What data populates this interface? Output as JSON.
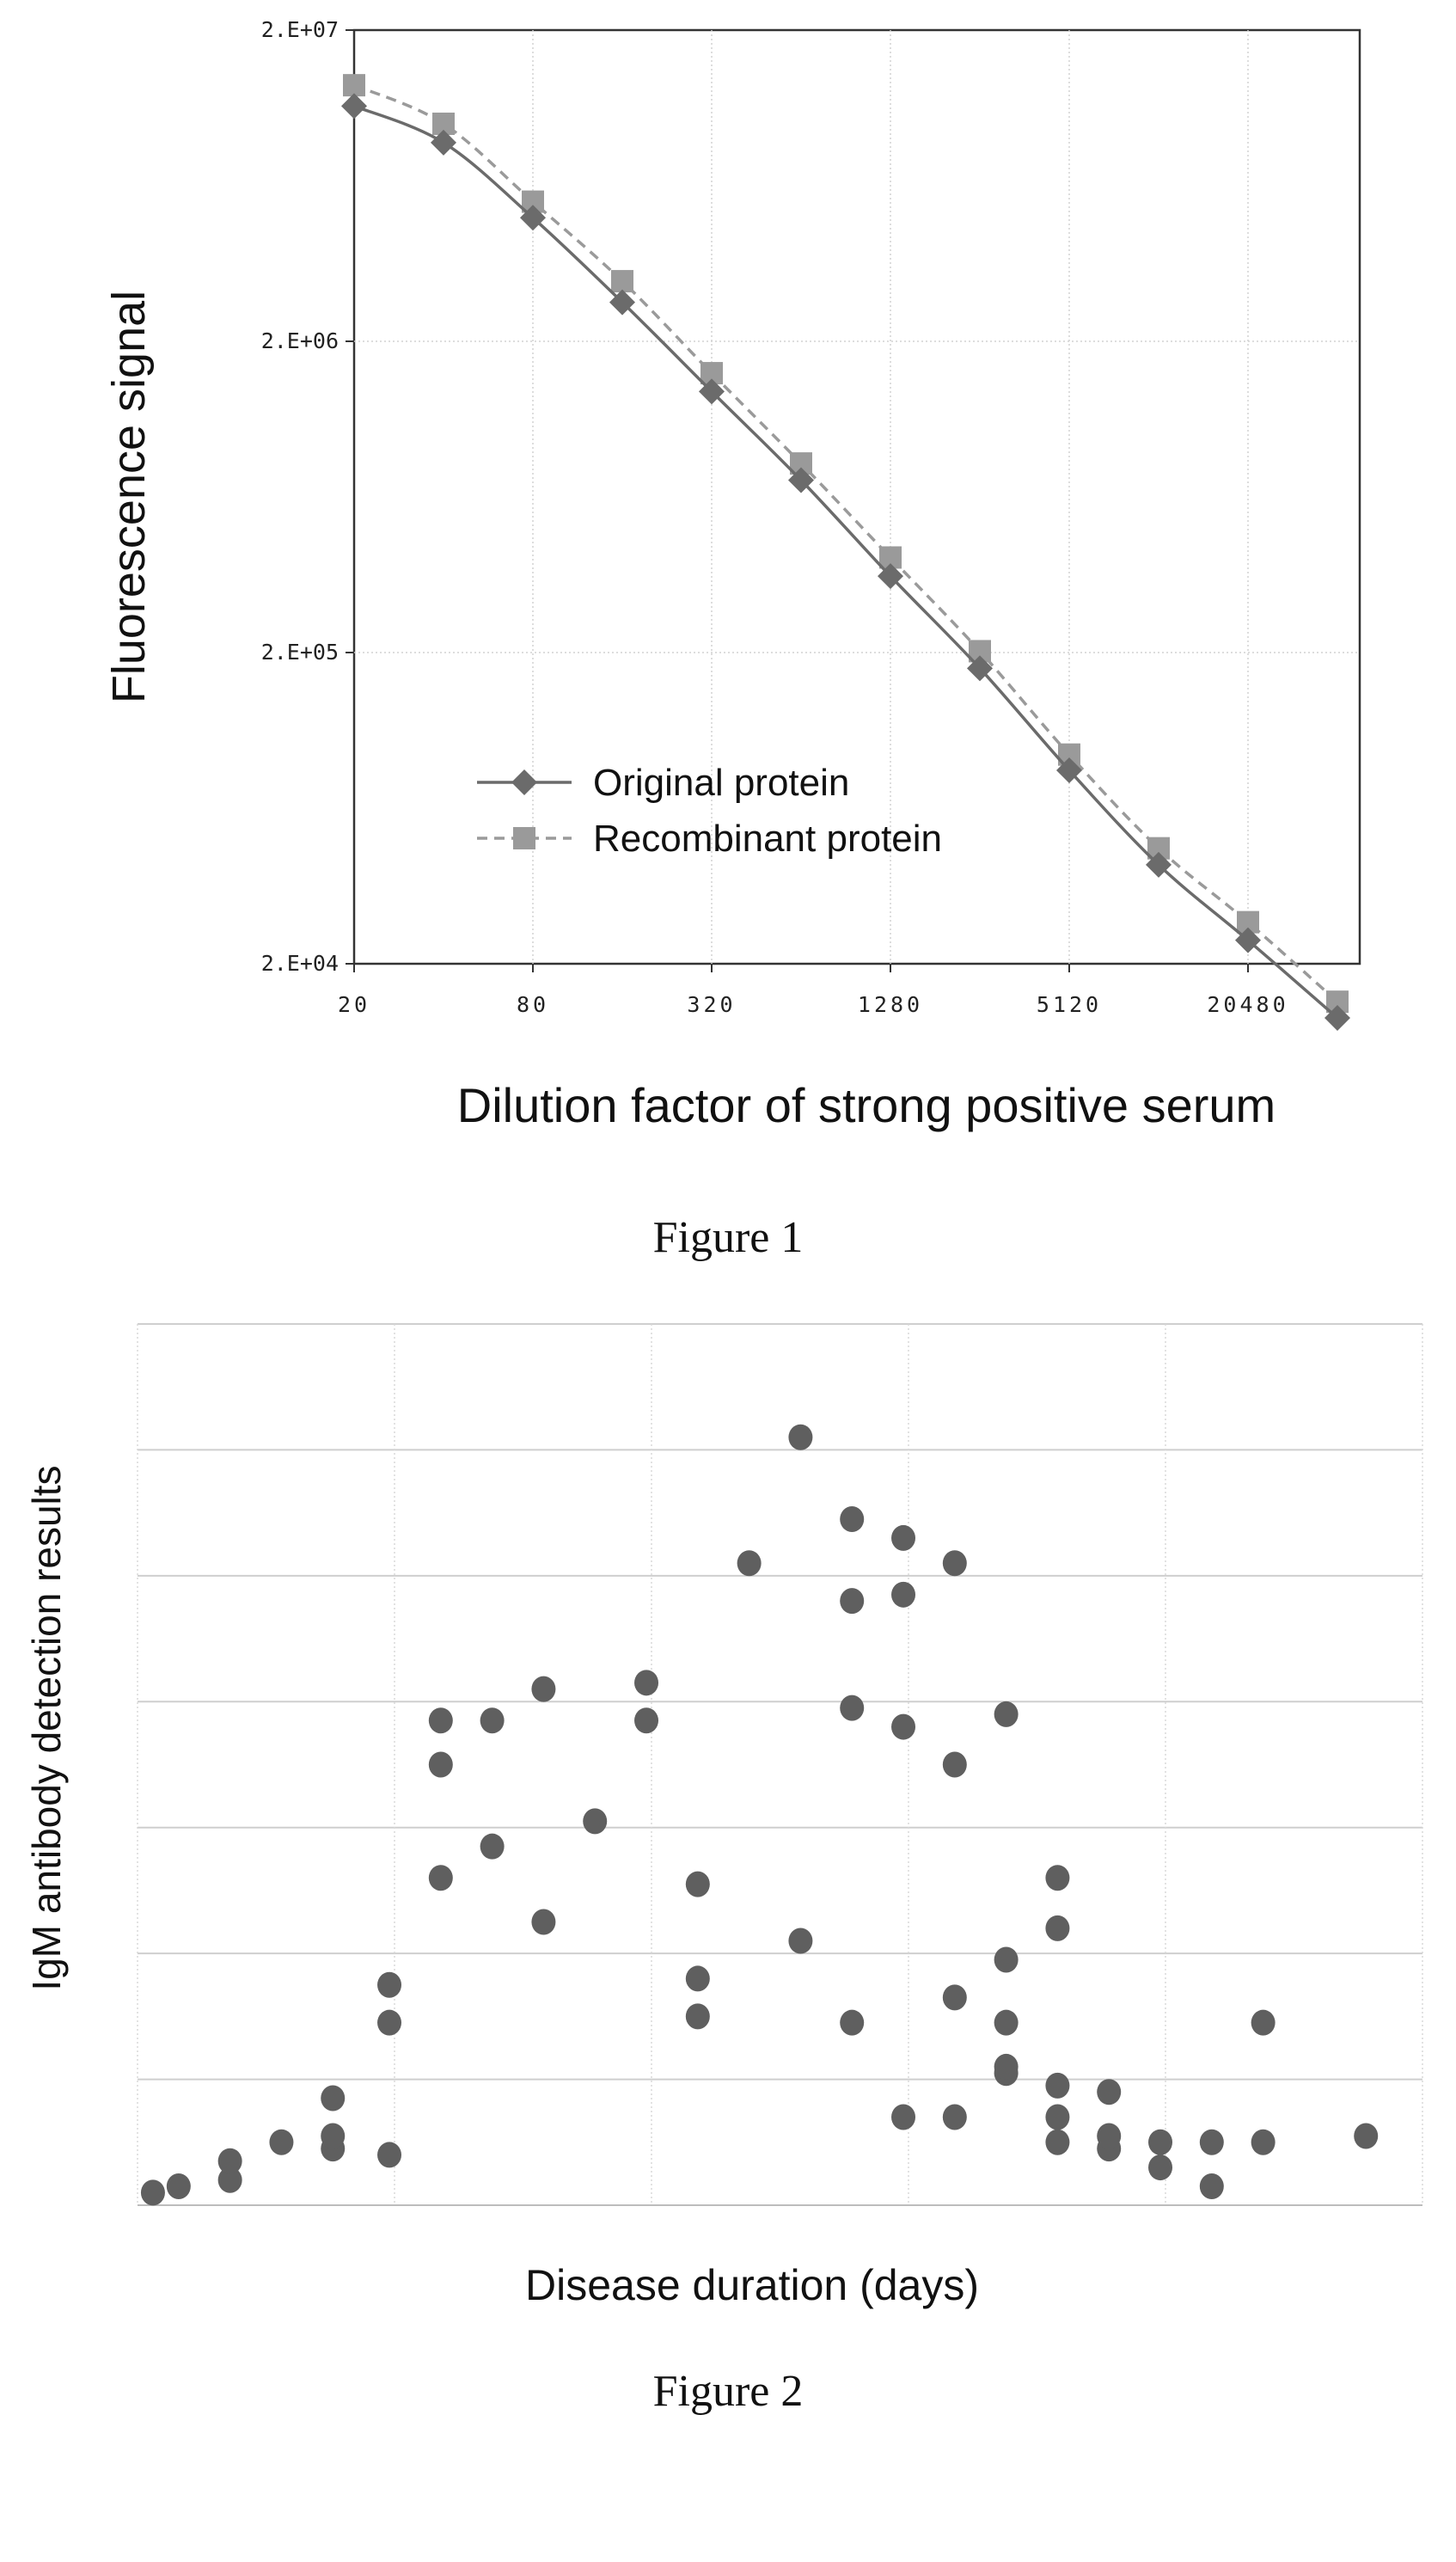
{
  "figure1": {
    "caption": "Figure 1",
    "chart_data": {
      "type": "line",
      "xlabel": "Dilution factor of strong positive serum",
      "ylabel": "Fluorescence signal",
      "x_scale": "log2",
      "x_ticks": [
        "20",
        "80",
        "320",
        "1280",
        "5120",
        "20480"
      ],
      "x_values": [
        20,
        40,
        80,
        160,
        320,
        640,
        1280,
        2560,
        5120,
        10240,
        20480,
        40960
      ],
      "y_scale": "log10",
      "y_ticks": [
        "2.E+04",
        "2.E+05",
        "2.E+06",
        "2.E+07"
      ],
      "ylim": [
        20000,
        20000000
      ],
      "grid": true,
      "legend_position": "lower-left",
      "series": [
        {
          "name": "Original protein",
          "marker": "diamond",
          "line": "solid",
          "color": "#6b6b6b",
          "values": [
            11400000,
            8700000,
            4990000,
            2670000,
            1380000,
            716000,
            352000,
            178000,
            83700,
            41600,
            23800,
            13400
          ]
        },
        {
          "name": "Recombinant protein",
          "marker": "square",
          "line": "dashed",
          "color": "#9a9a9a",
          "values": [
            13300000,
            10000000,
            5620000,
            3120000,
            1580000,
            810000,
            404000,
            202000,
            94000,
            47000,
            27200,
            15100
          ]
        }
      ]
    }
  },
  "figure2": {
    "caption": "Figure 2",
    "chart_data": {
      "type": "scatter",
      "xlabel": "Disease duration (days)",
      "ylabel": "IgM antibody detection results",
      "grid": true,
      "xlim": [
        0,
        25
      ],
      "ylim": [
        0,
        7
      ],
      "marker_color": "#5f5f5f",
      "points": [
        {
          "x": 0.3,
          "y": 0.1
        },
        {
          "x": 0.8,
          "y": 0.15
        },
        {
          "x": 1.8,
          "y": 0.2
        },
        {
          "x": 1.8,
          "y": 0.35
        },
        {
          "x": 2.8,
          "y": 0.5
        },
        {
          "x": 3.8,
          "y": 0.45
        },
        {
          "x": 3.8,
          "y": 0.55
        },
        {
          "x": 3.8,
          "y": 0.85
        },
        {
          "x": 4.9,
          "y": 0.4
        },
        {
          "x": 4.9,
          "y": 1.45
        },
        {
          "x": 4.9,
          "y": 1.75
        },
        {
          "x": 5.9,
          "y": 2.6
        },
        {
          "x": 5.9,
          "y": 3.5
        },
        {
          "x": 5.9,
          "y": 3.85
        },
        {
          "x": 6.9,
          "y": 2.85
        },
        {
          "x": 6.9,
          "y": 3.85
        },
        {
          "x": 7.9,
          "y": 2.25
        },
        {
          "x": 7.9,
          "y": 4.1
        },
        {
          "x": 8.9,
          "y": 3.05
        },
        {
          "x": 9.9,
          "y": 3.85
        },
        {
          "x": 9.9,
          "y": 4.15
        },
        {
          "x": 10.9,
          "y": 1.5
        },
        {
          "x": 10.9,
          "y": 1.8
        },
        {
          "x": 10.9,
          "y": 2.55
        },
        {
          "x": 11.9,
          "y": 5.1
        },
        {
          "x": 12.9,
          "y": 2.1
        },
        {
          "x": 12.9,
          "y": 6.1
        },
        {
          "x": 13.9,
          "y": 1.45
        },
        {
          "x": 13.9,
          "y": 3.95
        },
        {
          "x": 13.9,
          "y": 4.8
        },
        {
          "x": 13.9,
          "y": 5.45
        },
        {
          "x": 14.9,
          "y": 0.7
        },
        {
          "x": 14.9,
          "y": 3.8
        },
        {
          "x": 14.9,
          "y": 4.85
        },
        {
          "x": 14.9,
          "y": 5.3
        },
        {
          "x": 15.9,
          "y": 0.7
        },
        {
          "x": 15.9,
          "y": 1.65
        },
        {
          "x": 15.9,
          "y": 3.5
        },
        {
          "x": 15.9,
          "y": 5.1
        },
        {
          "x": 16.9,
          "y": 1.05
        },
        {
          "x": 16.9,
          "y": 1.1
        },
        {
          "x": 16.9,
          "y": 1.45
        },
        {
          "x": 16.9,
          "y": 1.95
        },
        {
          "x": 16.9,
          "y": 3.9
        },
        {
          "x": 17.9,
          "y": 0.5
        },
        {
          "x": 17.9,
          "y": 0.7
        },
        {
          "x": 17.9,
          "y": 0.95
        },
        {
          "x": 17.9,
          "y": 2.2
        },
        {
          "x": 17.9,
          "y": 2.6
        },
        {
          "x": 18.9,
          "y": 0.45
        },
        {
          "x": 18.9,
          "y": 0.55
        },
        {
          "x": 18.9,
          "y": 0.9
        },
        {
          "x": 19.9,
          "y": 0.3
        },
        {
          "x": 19.9,
          "y": 0.5
        },
        {
          "x": 20.9,
          "y": 0.15
        },
        {
          "x": 20.9,
          "y": 0.5
        },
        {
          "x": 21.9,
          "y": 0.5
        },
        {
          "x": 21.9,
          "y": 1.45
        },
        {
          "x": 23.9,
          "y": 0.55
        }
      ]
    }
  }
}
